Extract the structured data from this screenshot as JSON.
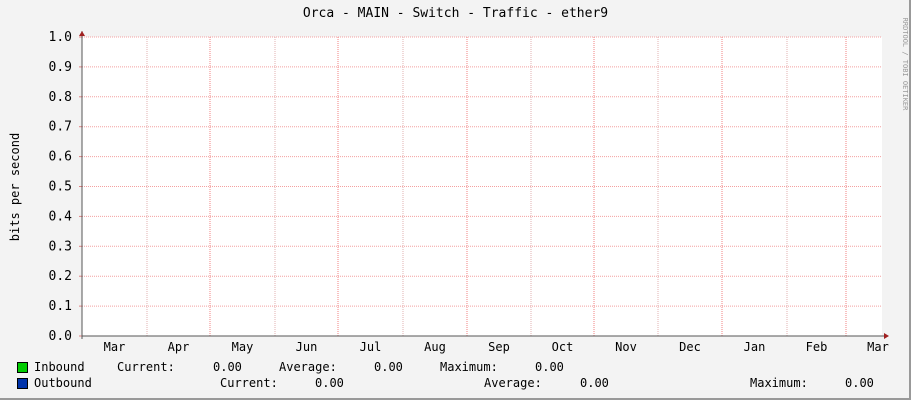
{
  "title": "Orca - MAIN - Switch - Traffic - ether9",
  "credit": "RRDTOOL / TOBI OETIKER",
  "chart_data": {
    "type": "line",
    "title": "Orca - MAIN - Switch - Traffic - ether9",
    "ylabel": "bits per second",
    "ylim": [
      0,
      1.0
    ],
    "yticks": [
      "0.0",
      "0.1",
      "0.2",
      "0.3",
      "0.4",
      "0.5",
      "0.6",
      "0.7",
      "0.8",
      "0.9",
      "1.0"
    ],
    "xticks": [
      "Mar",
      "Apr",
      "May",
      "Jun",
      "Jul",
      "Aug",
      "Sep",
      "Oct",
      "Nov",
      "Dec",
      "Jan",
      "Feb",
      "Mar"
    ],
    "grid": true,
    "series": [
      {
        "name": "Inbound",
        "color": "#00cc00",
        "values": []
      },
      {
        "name": "Outbound",
        "color": "#0033aa",
        "values": []
      }
    ]
  },
  "legend": {
    "inbound": {
      "name": "Inbound",
      "current_label": "Current:",
      "current": "0.00",
      "average_label": "Average:",
      "average": "0.00",
      "maximum_label": "Maximum:",
      "maximum": "0.00",
      "color": "#00cc00"
    },
    "outbound": {
      "name": "Outbound",
      "current_label": "Current:",
      "current": "0.00",
      "average_label": "Average:",
      "average": "0.00",
      "maximum_label": "Maximum:",
      "maximum": "0.00",
      "color": "#0033aa"
    }
  }
}
